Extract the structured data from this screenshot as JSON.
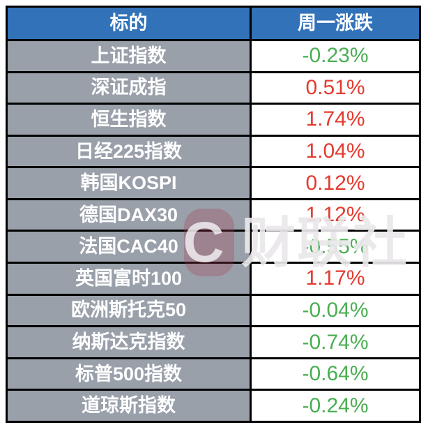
{
  "colors": {
    "header_bg": "#3172b9",
    "label_bg": "#99a0aa",
    "up": "#e33b30",
    "down": "#4aae52",
    "border": "#000000"
  },
  "watermark": {
    "logo_letter": "C",
    "text": "财联社"
  },
  "chart_data": {
    "type": "table",
    "title": "",
    "columns": [
      "标的",
      "周一涨跌"
    ],
    "legend": "red = gain (up), green = loss (down)",
    "rows": [
      {
        "label": "上证指数",
        "change_pct": -0.23,
        "display": "-0.23%",
        "trend": "down"
      },
      {
        "label": "深证成指",
        "change_pct": 0.51,
        "display": "0.51%",
        "trend": "up"
      },
      {
        "label": "恒生指数",
        "change_pct": 1.74,
        "display": "1.74%",
        "trend": "up"
      },
      {
        "label": "日经225指数",
        "change_pct": 1.04,
        "display": "1.04%",
        "trend": "up"
      },
      {
        "label": "韩国KOSPI",
        "change_pct": 0.12,
        "display": "0.12%",
        "trend": "up"
      },
      {
        "label": "德国DAX30",
        "change_pct": 1.12,
        "display": "1.12%",
        "trend": "up"
      },
      {
        "label": "法国CAC40",
        "change_pct": -0.55,
        "display": "-0.55%",
        "trend": "down"
      },
      {
        "label": "英国富时100",
        "change_pct": 1.17,
        "display": "1.17%",
        "trend": "up"
      },
      {
        "label": "欧洲斯托克50",
        "change_pct": -0.04,
        "display": "-0.04%",
        "trend": "down"
      },
      {
        "label": "纳斯达克指数",
        "change_pct": -0.74,
        "display": "-0.74%",
        "trend": "down"
      },
      {
        "label": "标普500指数",
        "change_pct": -0.64,
        "display": "-0.64%",
        "trend": "down"
      },
      {
        "label": "道琼斯指数",
        "change_pct": -0.24,
        "display": "-0.24%",
        "trend": "down"
      }
    ]
  }
}
